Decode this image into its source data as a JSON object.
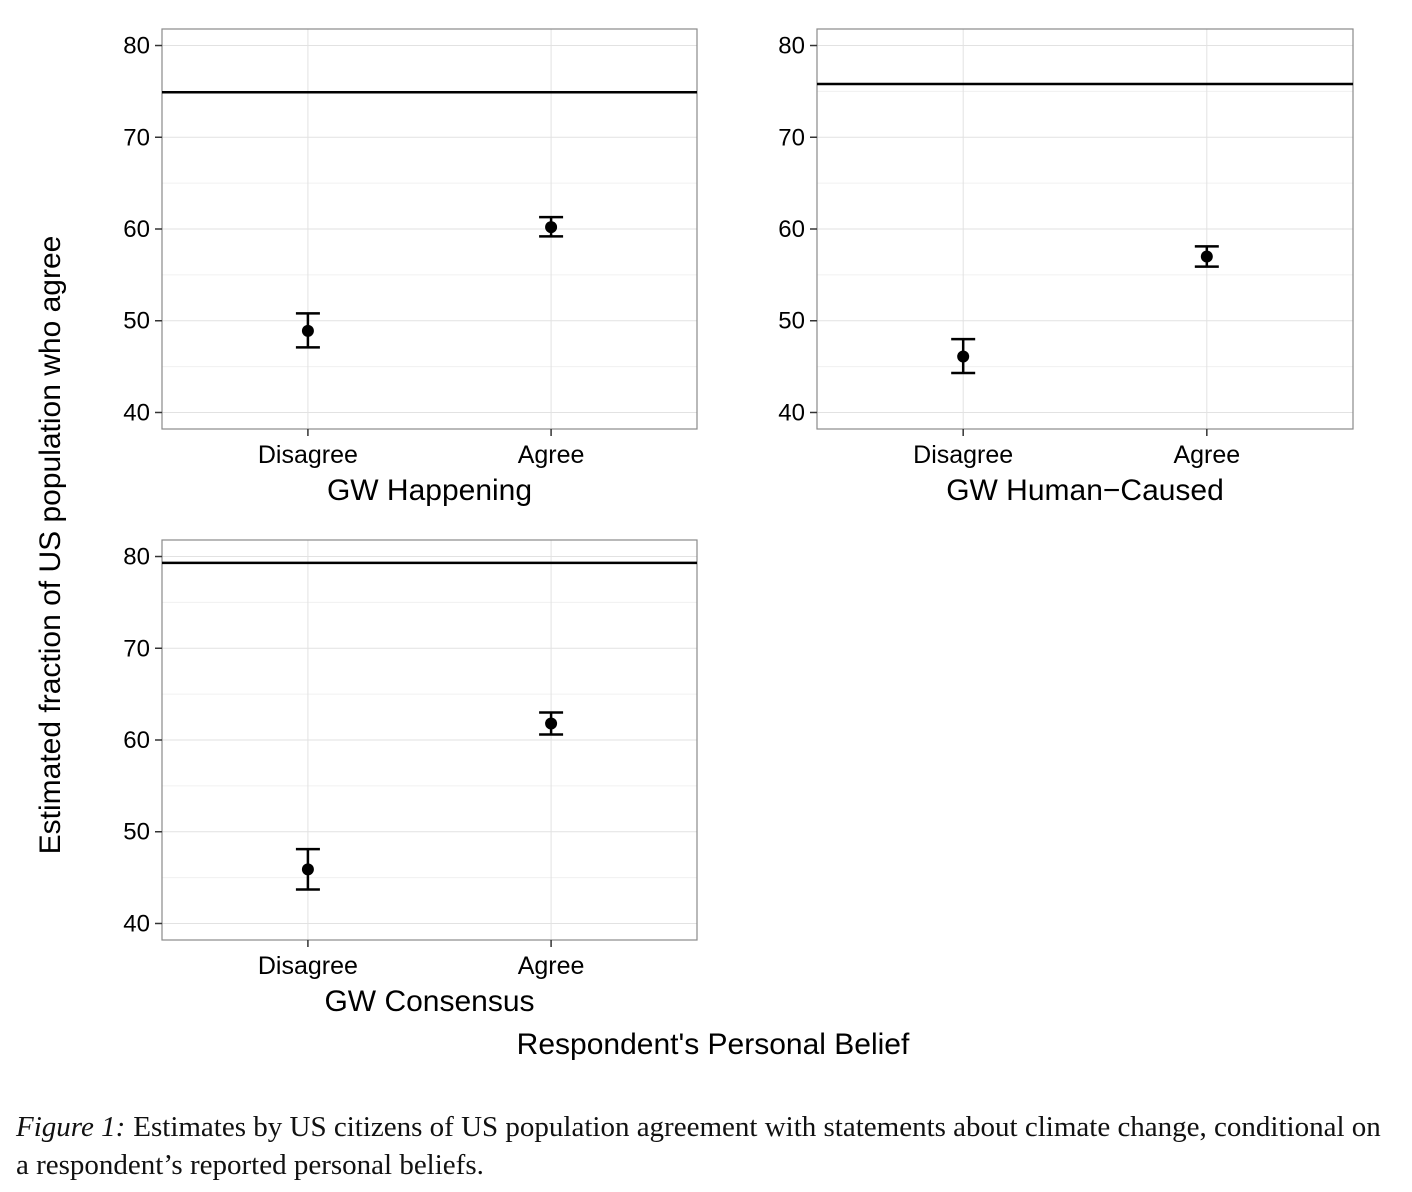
{
  "figure": {
    "ylabel": "Estimated fraction of US population who agree",
    "xlabel": "Respondent's Personal Belief"
  },
  "chart_data": [
    {
      "type": "scatter",
      "title": "GW Happening",
      "categories": [
        "Disagree",
        "Agree"
      ],
      "values": [
        48.9,
        60.2
      ],
      "error_low": [
        47.1,
        59.2
      ],
      "error_high": [
        50.8,
        61.3
      ],
      "reference_line": 74.9,
      "ylim": [
        38.2,
        81.8
      ],
      "yticks": [
        40,
        50,
        60,
        70,
        80
      ],
      "grid": true
    },
    {
      "type": "scatter",
      "title": "GW Human−Caused",
      "categories": [
        "Disagree",
        "Agree"
      ],
      "values": [
        46.1,
        57.0
      ],
      "error_low": [
        44.3,
        55.9
      ],
      "error_high": [
        48.0,
        58.1
      ],
      "reference_line": 75.8,
      "ylim": [
        38.2,
        81.8
      ],
      "yticks": [
        40,
        50,
        60,
        70,
        80
      ],
      "grid": true
    },
    {
      "type": "scatter",
      "title": "GW Consensus",
      "categories": [
        "Disagree",
        "Agree"
      ],
      "values": [
        45.9,
        61.8
      ],
      "error_low": [
        43.7,
        60.6
      ],
      "error_high": [
        48.1,
        63.0
      ],
      "reference_line": 79.3,
      "ylim": [
        38.2,
        81.8
      ],
      "yticks": [
        40,
        50,
        60,
        70,
        80
      ],
      "grid": true
    }
  ],
  "caption": {
    "lead": "Figure 1:",
    "text": "Estimates by US citizens of US population agreement with statements about climate change, conditional on a respondent’s reported personal beliefs."
  }
}
